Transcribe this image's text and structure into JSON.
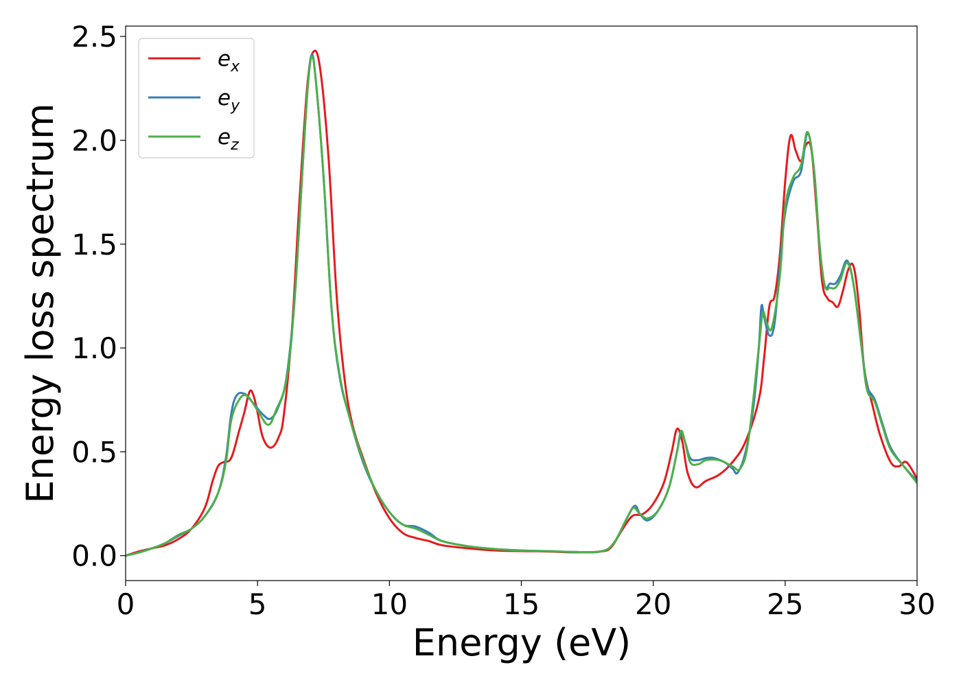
{
  "chart_data": {
    "type": "line",
    "xlabel": "Energy (eV)",
    "ylabel": "Energy loss spectrum",
    "xlim": [
      0,
      30
    ],
    "ylim": [
      -0.12,
      2.55
    ],
    "xticks": [
      0,
      5,
      10,
      15,
      20,
      25,
      30
    ],
    "xtick_labels": [
      "0",
      "5",
      "10",
      "15",
      "20",
      "25",
      "30"
    ],
    "yticks": [
      0.0,
      0.5,
      1.0,
      1.5,
      2.0,
      2.5
    ],
    "ytick_labels": [
      "0.0",
      "0.5",
      "1.0",
      "1.5",
      "2.0",
      "2.5"
    ],
    "grid": false,
    "legend_position": "top-left",
    "series": [
      {
        "name": "e_x",
        "legend_base": "e",
        "legend_sub": "x",
        "color": "#e41a1c",
        "points": [
          [
            0,
            0
          ],
          [
            0.5,
            0.02
          ],
          [
            1,
            0.035
          ],
          [
            1.5,
            0.05
          ],
          [
            2,
            0.08
          ],
          [
            2.5,
            0.13
          ],
          [
            3,
            0.23
          ],
          [
            3.3,
            0.36
          ],
          [
            3.5,
            0.43
          ],
          [
            3.7,
            0.45
          ],
          [
            4,
            0.47
          ],
          [
            4.3,
            0.6
          ],
          [
            4.5,
            0.69
          ],
          [
            4.7,
            0.79
          ],
          [
            4.85,
            0.77
          ],
          [
            5,
            0.69
          ],
          [
            5.2,
            0.57
          ],
          [
            5.5,
            0.52
          ],
          [
            5.8,
            0.57
          ],
          [
            6,
            0.68
          ],
          [
            6.3,
            1.08
          ],
          [
            6.6,
            1.73
          ],
          [
            6.9,
            2.28
          ],
          [
            7.15,
            2.43
          ],
          [
            7.4,
            2.32
          ],
          [
            7.7,
            1.9
          ],
          [
            8,
            1.25
          ],
          [
            8.3,
            0.85
          ],
          [
            8.6,
            0.63
          ],
          [
            9,
            0.47
          ],
          [
            9.5,
            0.3
          ],
          [
            10,
            0.18
          ],
          [
            10.5,
            0.11
          ],
          [
            11,
            0.085
          ],
          [
            11.5,
            0.07
          ],
          [
            12,
            0.05
          ],
          [
            13,
            0.035
          ],
          [
            14,
            0.025
          ],
          [
            15,
            0.022
          ],
          [
            16,
            0.02
          ],
          [
            17,
            0.016
          ],
          [
            18,
            0.02
          ],
          [
            18.4,
            0.04
          ],
          [
            18.8,
            0.12
          ],
          [
            19.2,
            0.19
          ],
          [
            19.6,
            0.2
          ],
          [
            20,
            0.25
          ],
          [
            20.4,
            0.35
          ],
          [
            20.7,
            0.5
          ],
          [
            20.9,
            0.61
          ],
          [
            21.1,
            0.55
          ],
          [
            21.3,
            0.4
          ],
          [
            21.6,
            0.33
          ],
          [
            22,
            0.36
          ],
          [
            22.5,
            0.39
          ],
          [
            23,
            0.45
          ],
          [
            23.5,
            0.55
          ],
          [
            24,
            0.75
          ],
          [
            24.2,
            0.95
          ],
          [
            24.4,
            1.2
          ],
          [
            24.6,
            1.25
          ],
          [
            24.8,
            1.45
          ],
          [
            25,
            1.8
          ],
          [
            25.2,
            2.02
          ],
          [
            25.4,
            1.95
          ],
          [
            25.6,
            1.9
          ],
          [
            25.8,
            1.98
          ],
          [
            26,
            1.95
          ],
          [
            26.2,
            1.65
          ],
          [
            26.4,
            1.32
          ],
          [
            26.6,
            1.24
          ],
          [
            26.8,
            1.22
          ],
          [
            27,
            1.2
          ],
          [
            27.2,
            1.28
          ],
          [
            27.4,
            1.38
          ],
          [
            27.6,
            1.39
          ],
          [
            27.8,
            1.2
          ],
          [
            28,
            0.9
          ],
          [
            28.3,
            0.73
          ],
          [
            28.6,
            0.58
          ],
          [
            29,
            0.45
          ],
          [
            29.3,
            0.43
          ],
          [
            29.6,
            0.45
          ],
          [
            30,
            0.37
          ]
        ]
      },
      {
        "name": "e_y",
        "legend_base": "e",
        "legend_sub": "y",
        "color": "#377eb8",
        "points": [
          [
            0,
            0
          ],
          [
            0.5,
            0.015
          ],
          [
            1,
            0.035
          ],
          [
            1.5,
            0.06
          ],
          [
            2,
            0.095
          ],
          [
            2.5,
            0.13
          ],
          [
            3,
            0.19
          ],
          [
            3.5,
            0.3
          ],
          [
            3.8,
            0.47
          ],
          [
            4,
            0.68
          ],
          [
            4.2,
            0.77
          ],
          [
            4.5,
            0.78
          ],
          [
            4.8,
            0.74
          ],
          [
            5.2,
            0.68
          ],
          [
            5.5,
            0.66
          ],
          [
            5.8,
            0.72
          ],
          [
            6.1,
            0.86
          ],
          [
            6.4,
            1.23
          ],
          [
            6.7,
            1.85
          ],
          [
            6.9,
            2.25
          ],
          [
            7.05,
            2.41
          ],
          [
            7.2,
            2.3
          ],
          [
            7.5,
            1.83
          ],
          [
            7.8,
            1.2
          ],
          [
            8.1,
            0.87
          ],
          [
            8.5,
            0.66
          ],
          [
            9,
            0.45
          ],
          [
            9.5,
            0.31
          ],
          [
            10,
            0.21
          ],
          [
            10.5,
            0.15
          ],
          [
            11,
            0.14
          ],
          [
            11.5,
            0.11
          ],
          [
            12,
            0.07
          ],
          [
            13,
            0.045
          ],
          [
            14,
            0.032
          ],
          [
            15,
            0.025
          ],
          [
            16,
            0.022
          ],
          [
            17,
            0.018
          ],
          [
            18,
            0.02
          ],
          [
            18.5,
            0.06
          ],
          [
            19,
            0.18
          ],
          [
            19.3,
            0.24
          ],
          [
            19.5,
            0.2
          ],
          [
            19.8,
            0.17
          ],
          [
            20.2,
            0.22
          ],
          [
            20.6,
            0.33
          ],
          [
            20.9,
            0.5
          ],
          [
            21.05,
            0.59
          ],
          [
            21.2,
            0.55
          ],
          [
            21.4,
            0.47
          ],
          [
            21.7,
            0.46
          ],
          [
            22,
            0.47
          ],
          [
            22.3,
            0.47
          ],
          [
            22.7,
            0.45
          ],
          [
            23,
            0.42
          ],
          [
            23.2,
            0.4
          ],
          [
            23.5,
            0.5
          ],
          [
            23.8,
            0.72
          ],
          [
            24,
            1.0
          ],
          [
            24.1,
            1.2
          ],
          [
            24.2,
            1.15
          ],
          [
            24.4,
            1.06
          ],
          [
            24.6,
            1.12
          ],
          [
            24.8,
            1.4
          ],
          [
            25,
            1.65
          ],
          [
            25.3,
            1.8
          ],
          [
            25.6,
            1.85
          ],
          [
            25.85,
            2.03
          ],
          [
            26.1,
            1.85
          ],
          [
            26.3,
            1.5
          ],
          [
            26.5,
            1.3
          ],
          [
            26.7,
            1.31
          ],
          [
            26.9,
            1.31
          ],
          [
            27.1,
            1.35
          ],
          [
            27.35,
            1.42
          ],
          [
            27.6,
            1.3
          ],
          [
            27.9,
            1.0
          ],
          [
            28.1,
            0.82
          ],
          [
            28.4,
            0.75
          ],
          [
            28.7,
            0.63
          ],
          [
            29,
            0.52
          ],
          [
            29.5,
            0.43
          ],
          [
            30,
            0.36
          ]
        ]
      },
      {
        "name": "e_z",
        "legend_base": "e",
        "legend_sub": "z",
        "color": "#4daf4a",
        "points": [
          [
            0,
            0
          ],
          [
            0.5,
            0.015
          ],
          [
            1,
            0.035
          ],
          [
            1.5,
            0.06
          ],
          [
            2,
            0.1
          ],
          [
            2.5,
            0.13
          ],
          [
            3,
            0.19
          ],
          [
            3.5,
            0.3
          ],
          [
            3.8,
            0.45
          ],
          [
            4,
            0.65
          ],
          [
            4.3,
            0.75
          ],
          [
            4.6,
            0.77
          ],
          [
            5,
            0.7
          ],
          [
            5.4,
            0.63
          ],
          [
            5.7,
            0.7
          ],
          [
            6.1,
            0.85
          ],
          [
            6.4,
            1.22
          ],
          [
            6.7,
            1.85
          ],
          [
            6.9,
            2.25
          ],
          [
            7.05,
            2.4
          ],
          [
            7.2,
            2.3
          ],
          [
            7.5,
            1.83
          ],
          [
            7.8,
            1.2
          ],
          [
            8.1,
            0.88
          ],
          [
            8.5,
            0.66
          ],
          [
            9,
            0.46
          ],
          [
            9.5,
            0.31
          ],
          [
            10,
            0.21
          ],
          [
            10.5,
            0.15
          ],
          [
            11,
            0.13
          ],
          [
            11.5,
            0.1
          ],
          [
            12,
            0.07
          ],
          [
            13,
            0.045
          ],
          [
            14,
            0.032
          ],
          [
            15,
            0.025
          ],
          [
            16,
            0.022
          ],
          [
            17,
            0.018
          ],
          [
            18,
            0.02
          ],
          [
            18.5,
            0.06
          ],
          [
            19,
            0.18
          ],
          [
            19.25,
            0.23
          ],
          [
            19.5,
            0.2
          ],
          [
            19.8,
            0.18
          ],
          [
            20.2,
            0.22
          ],
          [
            20.6,
            0.33
          ],
          [
            20.9,
            0.5
          ],
          [
            21.05,
            0.6
          ],
          [
            21.2,
            0.55
          ],
          [
            21.4,
            0.45
          ],
          [
            21.7,
            0.44
          ],
          [
            22,
            0.46
          ],
          [
            22.5,
            0.46
          ],
          [
            23,
            0.43
          ],
          [
            23.3,
            0.42
          ],
          [
            23.6,
            0.55
          ],
          [
            24,
            1.0
          ],
          [
            24.15,
            1.17
          ],
          [
            24.3,
            1.12
          ],
          [
            24.5,
            1.1
          ],
          [
            24.8,
            1.35
          ],
          [
            25,
            1.68
          ],
          [
            25.3,
            1.82
          ],
          [
            25.6,
            1.88
          ],
          [
            25.85,
            2.04
          ],
          [
            26.1,
            1.85
          ],
          [
            26.3,
            1.5
          ],
          [
            26.5,
            1.3
          ],
          [
            26.7,
            1.29
          ],
          [
            26.9,
            1.29
          ],
          [
            27.1,
            1.33
          ],
          [
            27.35,
            1.41
          ],
          [
            27.6,
            1.3
          ],
          [
            27.9,
            1.0
          ],
          [
            28.1,
            0.8
          ],
          [
            28.4,
            0.74
          ],
          [
            28.7,
            0.62
          ],
          [
            29,
            0.51
          ],
          [
            29.5,
            0.43
          ],
          [
            30,
            0.35
          ]
        ]
      }
    ]
  }
}
